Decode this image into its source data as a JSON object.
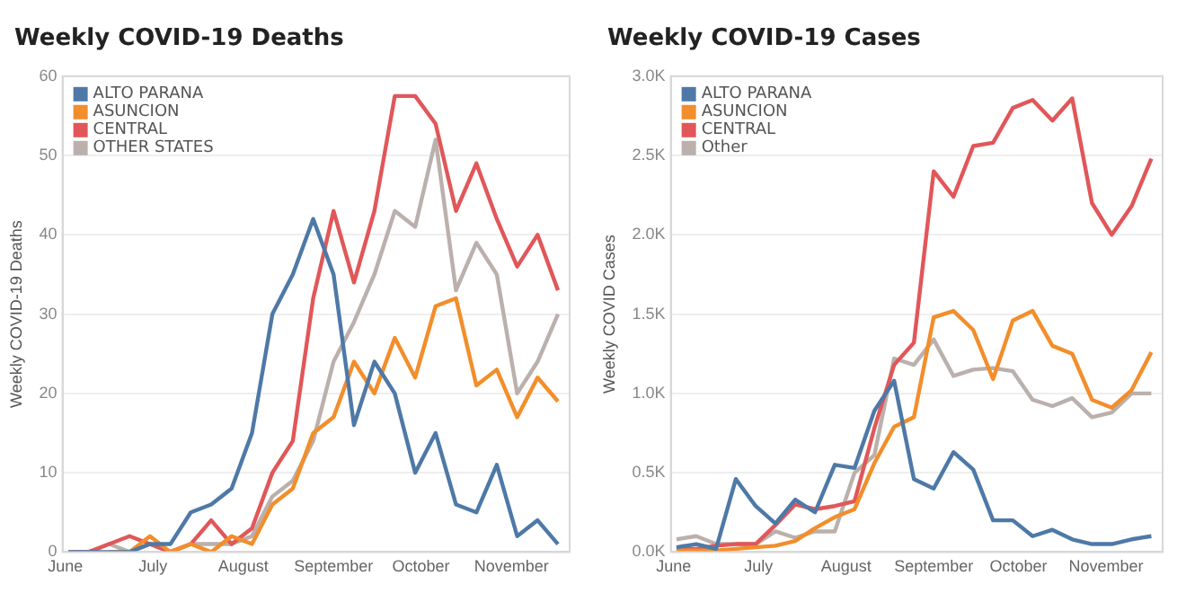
{
  "chart_data": [
    {
      "type": "line",
      "title": "Weekly COVID-19 Deaths",
      "ylabel": "Weekly COVID-19 Deaths",
      "legend": "top left",
      "grid": "y",
      "x": [
        "--06-02",
        "--06-09",
        "--06-16",
        "--06-23",
        "--06-30",
        "--07-07",
        "--07-14",
        "--07-21",
        "--07-28",
        "--08-04",
        "--08-11",
        "--08-18",
        "--08-25",
        "--09-01",
        "--09-08",
        "--09-15",
        "--09-22",
        "--09-29",
        "--10-06",
        "--10-13",
        "--10-20",
        "--10-27",
        "--11-03",
        "--11-10",
        "--11-17"
      ],
      "xlim": [
        "--05-31",
        "--11-21"
      ],
      "xticks": [
        {
          "value": "--06-01",
          "label": "June"
        },
        {
          "value": "--07-01",
          "label": "July"
        },
        {
          "value": "--08-01",
          "label": "August"
        },
        {
          "value": "--09-01",
          "label": "September"
        },
        {
          "value": "--10-01",
          "label": "October"
        },
        {
          "value": "--11-01",
          "label": "November"
        }
      ],
      "ylim": [
        0,
        60
      ],
      "yticks": [
        0,
        10,
        20,
        30,
        40,
        50,
        60
      ],
      "series": [
        {
          "name": "ALTO PARANA",
          "color": "#4e79a7",
          "values": [
            0,
            0,
            0,
            0,
            1,
            1,
            5,
            6,
            8,
            15,
            30,
            35,
            42,
            35,
            16,
            24,
            20,
            10,
            15,
            6,
            5,
            11,
            2,
            4,
            1
          ]
        },
        {
          "name": "ASUNCION",
          "color": "#f28e2b",
          "values": [
            null,
            null,
            0,
            0,
            2,
            0,
            1,
            0,
            2,
            1,
            6,
            8,
            15,
            17,
            24,
            20,
            27,
            22,
            31,
            32,
            21,
            23,
            17,
            22,
            19
          ]
        },
        {
          "name": "CENTRAL",
          "color": "#e15759",
          "values": [
            0,
            0,
            1,
            2,
            1,
            0,
            1,
            4,
            1,
            3,
            10,
            14,
            32,
            43,
            34,
            43,
            57.5,
            57.5,
            54,
            43,
            49,
            42,
            36,
            40,
            33
          ]
        },
        {
          "name": "OTHER STATES",
          "color": "#bab0ac",
          "values": [
            0,
            0,
            1,
            0,
            1,
            0,
            1,
            1,
            1,
            2,
            7,
            9,
            14,
            24,
            29,
            35,
            43,
            41,
            52,
            33,
            39,
            35,
            20,
            24,
            30
          ]
        }
      ]
    },
    {
      "type": "line",
      "title": "Weekly COVID-19 Cases",
      "ylabel": "Weekly COVID Cases",
      "legend": "top left",
      "grid": "y",
      "x": [
        "--06-02",
        "--06-09",
        "--06-16",
        "--06-23",
        "--06-30",
        "--07-07",
        "--07-14",
        "--07-21",
        "--07-28",
        "--08-04",
        "--08-11",
        "--08-18",
        "--08-25",
        "--09-01",
        "--09-08",
        "--09-15",
        "--09-22",
        "--09-29",
        "--10-06",
        "--10-13",
        "--10-20",
        "--10-27",
        "--11-03",
        "--11-10",
        "--11-17"
      ],
      "xlim": [
        "--05-31",
        "--11-21"
      ],
      "xticks": [
        {
          "value": "--06-01",
          "label": "June"
        },
        {
          "value": "--07-01",
          "label": "July"
        },
        {
          "value": "--08-01",
          "label": "August"
        },
        {
          "value": "--09-01",
          "label": "September"
        },
        {
          "value": "--10-01",
          "label": "October"
        },
        {
          "value": "--11-01",
          "label": "November"
        }
      ],
      "ylim": [
        0,
        3000
      ],
      "yticks": [
        {
          "value": 0,
          "label": "0.0K"
        },
        {
          "value": 500,
          "label": "0.5K"
        },
        {
          "value": 1000,
          "label": "1.0K"
        },
        {
          "value": 1500,
          "label": "1.5K"
        },
        {
          "value": 2000,
          "label": "2.0K"
        },
        {
          "value": 2500,
          "label": "2.5K"
        },
        {
          "value": 3000,
          "label": "3.0K"
        }
      ],
      "series": [
        {
          "name": "ALTO PARANA",
          "color": "#4e79a7",
          "values": [
            30,
            50,
            20,
            460,
            290,
            180,
            330,
            250,
            550,
            530,
            890,
            1080,
            460,
            400,
            630,
            520,
            200,
            200,
            100,
            140,
            80,
            50,
            50,
            80,
            100
          ]
        },
        {
          "name": "ASUNCION",
          "color": "#f28e2b",
          "values": [
            10,
            10,
            10,
            20,
            30,
            40,
            70,
            150,
            220,
            270,
            560,
            790,
            850,
            1480,
            1520,
            1400,
            1090,
            1460,
            1520,
            1300,
            1250,
            960,
            910,
            1020,
            1260
          ]
        },
        {
          "name": "CENTRAL",
          "color": "#e15759",
          "values": [
            20,
            20,
            40,
            50,
            50,
            170,
            300,
            270,
            290,
            320,
            780,
            1180,
            1320,
            2400,
            2240,
            2560,
            2580,
            2800,
            2850,
            2720,
            2860,
            2200,
            2000,
            2180,
            2480
          ]
        },
        {
          "name": "Other",
          "color": "#bab0ac",
          "values": [
            80,
            100,
            50,
            50,
            50,
            130,
            90,
            130,
            130,
            500,
            610,
            1220,
            1180,
            1340,
            1110,
            1150,
            1160,
            1140,
            960,
            920,
            970,
            850,
            880,
            1000,
            1000
          ]
        }
      ]
    }
  ]
}
